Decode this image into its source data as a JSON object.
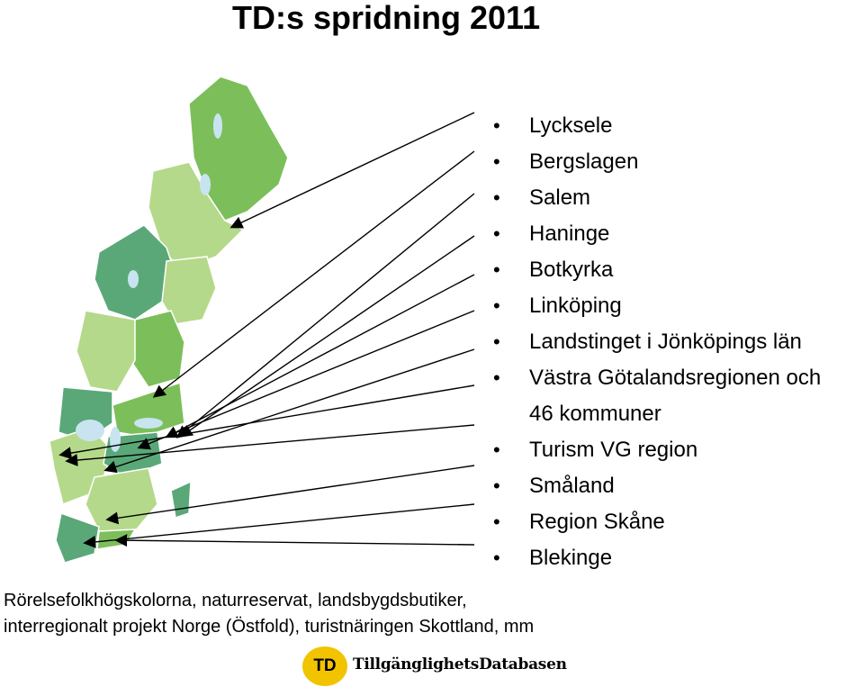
{
  "title": "TD:s spridning 2011",
  "items": [
    "Lycksele",
    "Bergslagen",
    "Salem",
    "Haninge",
    "Botkyrka",
    "Linköping",
    "Landstinget i Jönköpings län",
    "Västra Götalandsregionen och",
    "46 kommuner",
    "Turism VG region",
    "Småland",
    "Region Skåne",
    "Blekinge"
  ],
  "footer": {
    "line1": "Rörelsefolkhögskolorna, naturreservat, landsbygdsbutiker,",
    "line2": "interregionalt projekt Norge (Östfold), turistnäringen Skottland, mm"
  },
  "logo": {
    "badge": "TD",
    "name": "TillgänglighetsDatabasen"
  },
  "colors": {
    "light_green": "#b5d98a",
    "mid_green": "#7cbf5a",
    "dark_green": "#5aa878",
    "teal": "#4f9e82",
    "lake": "#c8e4f0",
    "logo_yellow": "#f2c400"
  }
}
